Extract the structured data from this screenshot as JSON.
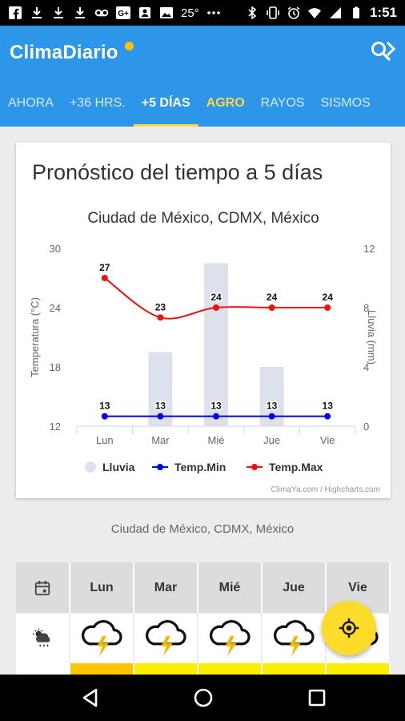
{
  "status_bar": {
    "temperature": "25°",
    "time": "1:51",
    "icons": [
      "facebook-icon",
      "download-icon",
      "download-icon",
      "download-icon",
      "voicemail-icon",
      "google-plus-icon",
      "contacts-icon",
      "image-icon",
      "more-icon",
      "bluetooth-icon",
      "vibrate-icon",
      "alarm-icon",
      "wifi-icon",
      "signal-icon",
      "battery-icon"
    ]
  },
  "app": {
    "title": "ClimaDiario",
    "accent": "#2d96e8",
    "dot_color": "#ffc107"
  },
  "tabs": [
    {
      "label": "AHORA"
    },
    {
      "label": "+36 HRS."
    },
    {
      "label": "+5 DÍAS",
      "active": true
    },
    {
      "label": "AGRO",
      "highlight": true
    },
    {
      "label": "RAYOS"
    },
    {
      "label": "SISMOS"
    }
  ],
  "card": {
    "title": "Pronóstico del tiempo a 5 días"
  },
  "chart_data": {
    "type": "combo",
    "subtitle": "Ciudad de México, CDMX, México",
    "categories": [
      "Lun",
      "Mar",
      "Mié",
      "Jue",
      "Vie"
    ],
    "ylabel": "Temperatura (°C)",
    "ylabel_right": "Lluvia (mm)",
    "ylim": [
      12,
      30
    ],
    "yticks": [
      12,
      18,
      24,
      30
    ],
    "ylim_right": [
      0,
      12
    ],
    "yticks_right": [
      0,
      4,
      8,
      12
    ],
    "grid": false,
    "legend_position": "bottom",
    "credits": "ClimaYa.com / Highcharts.com",
    "series": [
      {
        "name": "Lluvia",
        "type": "bar",
        "axis": "right",
        "color": "#dde1ec",
        "values": [
          0,
          5,
          11,
          4,
          0
        ]
      },
      {
        "name": "Temp.Min",
        "type": "line",
        "axis": "left",
        "color": "#0000ee",
        "values": [
          13,
          13,
          13,
          13,
          13
        ]
      },
      {
        "name": "Temp.Max",
        "type": "line",
        "axis": "left",
        "color": "#ee1111",
        "values": [
          27,
          23,
          24,
          24,
          24
        ]
      }
    ]
  },
  "location_caption": "Ciudad de México, CDMX, México",
  "forecast_table": {
    "days": [
      "Lun",
      "Mar",
      "Mié",
      "Jue",
      "Vie"
    ],
    "row_icon": "partly-cloudy-rain-icon",
    "day_icons": [
      "thunderstorm-icon",
      "thunderstorm-icon",
      "thunderstorm-icon",
      "thunderstorm-icon",
      "thunderstorm-icon"
    ],
    "bar_colors": [
      "#ffc400",
      "#ffee00",
      "#ffee00",
      "#ffee00",
      "#ffee00"
    ]
  },
  "fab_icon": "my-location-icon"
}
